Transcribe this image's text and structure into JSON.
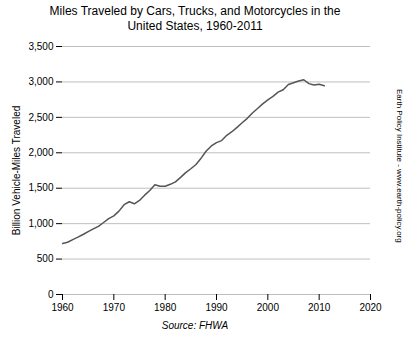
{
  "chart_data": {
    "type": "line",
    "title": "Miles Traveled by Cars, Trucks, and Motorcycles in the\nUnited States, 1960-2011",
    "ylabel": "Billion Vehicle-Miles Traveled",
    "annotations": [
      "Source: FHWA",
      "Earth Policy Institute - www.earth-policy.org"
    ],
    "color": "#555555",
    "grid": true,
    "xlim": [
      1960,
      2020
    ],
    "xticks": [
      1960,
      1970,
      1980,
      1990,
      2000,
      2010,
      2020
    ],
    "ylim": [
      0,
      3500
    ],
    "yticks": [
      0,
      500,
      {
        "value": 1000,
        "label": "1,000"
      },
      {
        "value": 1500,
        "label": "1,500"
      },
      {
        "value": 2000,
        "label": "2,000"
      },
      {
        "value": 2500,
        "label": "2,500"
      },
      {
        "value": 3000,
        "label": "3,000"
      },
      {
        "value": 3500,
        "label": "3,500"
      }
    ],
    "x": [
      1960,
      1961,
      1962,
      1963,
      1964,
      1965,
      1966,
      1967,
      1968,
      1969,
      1970,
      1971,
      1972,
      1973,
      1974,
      1975,
      1976,
      1977,
      1978,
      1979,
      1980,
      1981,
      1982,
      1983,
      1984,
      1985,
      1986,
      1987,
      1988,
      1989,
      1990,
      1991,
      1992,
      1993,
      1994,
      1995,
      1996,
      1997,
      1998,
      1999,
      2000,
      2001,
      2002,
      2003,
      2004,
      2005,
      2006,
      2007,
      2008,
      2009,
      2010,
      2011
    ],
    "values": [
      719,
      737,
      775,
      809,
      847,
      888,
      926,
      962,
      1016,
      1072,
      1110,
      1177,
      1267,
      1309,
      1280,
      1328,
      1402,
      1467,
      1548,
      1529,
      1527,
      1555,
      1590,
      1653,
      1720,
      1775,
      1835,
      1924,
      2026,
      2096,
      2144,
      2172,
      2247,
      2297,
      2358,
      2423,
      2486,
      2562,
      2625,
      2691,
      2747,
      2797,
      2856,
      2890,
      2964,
      2989,
      3014,
      3031,
      2976,
      2957,
      2967,
      2946
    ]
  }
}
